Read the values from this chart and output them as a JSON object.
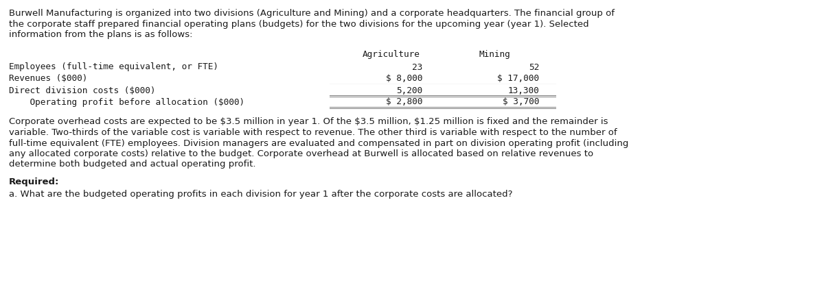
{
  "intro_lines": [
    "Burwell Manufacturing is organized into two divisions (Agriculture and Mining) and a corporate headquarters. The financial group of",
    "the corporate staff prepared financial operating plans (budgets) for the two divisions for the upcoming year (year 1). Selected",
    "information from the plans is as follows:"
  ],
  "table_header": [
    "Agriculture",
    "Mining"
  ],
  "table_rows": [
    {
      "label": "Employees (full-time equivalent, or FTE)",
      "ag": "23",
      "min": "52"
    },
    {
      "label": "Revenues ($000)",
      "ag": "$ 8,000",
      "min": "$ 17,000"
    },
    {
      "label": "Direct division costs ($000)",
      "ag": "5,200",
      "min": "13,300"
    },
    {
      "label": "    Operating profit before allocation ($000)",
      "ag": "$ 2,800",
      "min": "$ 3,700"
    }
  ],
  "body_lines": [
    "Corporate overhead costs are expected to be $3.5 million in year 1. Of the $3.5 million, $1.25 million is fixed and the remainder is",
    "variable. Two-thirds of the variable cost is variable with respect to revenue. The other third is variable with respect to the number of",
    "full-time equivalent (FTE) employees. Division managers are evaluated and compensated in part on division operating profit (including",
    "any allocated corporate costs) relative to the budget. Corporate overhead at Burwell is allocated based on relative revenues to",
    "determine both budgeted and actual operating profit."
  ],
  "required_label": "Required:",
  "question_a": "a. What are the budgeted operating profits in each division for year 1 after the corporate costs are allocated?",
  "bg_color": "#ffffff",
  "table_header_bg": "#d8dce6",
  "text_color": "#1a1a1a",
  "line_color": "#666666",
  "fig_width": 12.0,
  "fig_height": 4.14,
  "dpi": 100
}
